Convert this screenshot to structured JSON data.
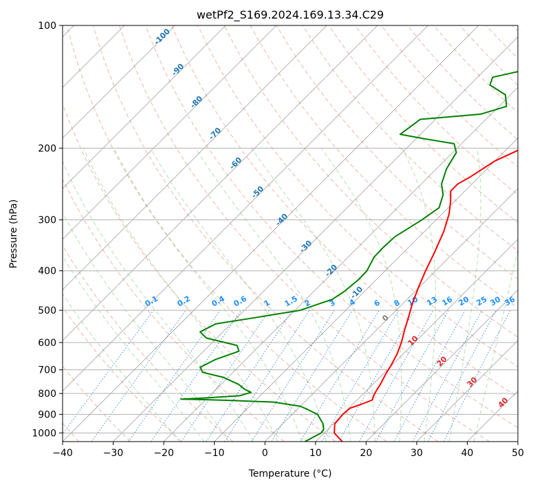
{
  "chart_data": {
    "type": "line",
    "subtype": "skew-t log-p diagram",
    "title": "wetPf2_S169.2024.169.13.34.C29",
    "xlabel": "Temperature (°C)",
    "ylabel": "Pressure (hPa)",
    "xlim": [
      -40,
      50
    ],
    "ylim": [
      1050,
      100
    ],
    "y_scale": "log",
    "x_ticks": [
      -40,
      -30,
      -20,
      -10,
      0,
      10,
      20,
      30,
      40,
      50
    ],
    "y_ticks": [
      100,
      200,
      300,
      400,
      500,
      600,
      700,
      800,
      900,
      1000
    ],
    "grid": true,
    "series": [
      {
        "role": "temperature",
        "color": "#ff0000",
        "points": [
          [
            1050,
            15.3
          ],
          [
            1000,
            12.0
          ],
          [
            950,
            10.3
          ],
          [
            900,
            10.0
          ],
          [
            870,
            10.2
          ],
          [
            850,
            11.7
          ],
          [
            830,
            13.0
          ],
          [
            810,
            12.4
          ],
          [
            790,
            12.0
          ],
          [
            760,
            11.5
          ],
          [
            720,
            10.6
          ],
          [
            680,
            9.8
          ],
          [
            640,
            8.8
          ],
          [
            600,
            7.4
          ],
          [
            560,
            5.6
          ],
          [
            520,
            3.8
          ],
          [
            480,
            1.8
          ],
          [
            440,
            -0.1
          ],
          [
            400,
            -2.0
          ],
          [
            360,
            -3.9
          ],
          [
            320,
            -6.2
          ],
          [
            290,
            -8.6
          ],
          [
            270,
            -10.8
          ],
          [
            255,
            -12.8
          ],
          [
            245,
            -12.8
          ],
          [
            235,
            -11.7
          ],
          [
            215,
            -10.0
          ],
          [
            195,
            -6.0
          ],
          [
            175,
            -3.5
          ],
          [
            155,
            -2.9
          ],
          [
            140,
            -1.4
          ],
          [
            125,
            0.9
          ],
          [
            110,
            4.6
          ],
          [
            100,
            6.5
          ]
        ]
      },
      {
        "role": "dewpoint",
        "color": "#008000",
        "points": [
          [
            1050,
            7.9
          ],
          [
            1020,
            8.8
          ],
          [
            1000,
            9.4
          ],
          [
            980,
            9.2
          ],
          [
            950,
            8.0
          ],
          [
            900,
            5.0
          ],
          [
            875,
            2.0
          ],
          [
            860,
            0.0
          ],
          [
            840,
            -6.0
          ],
          [
            832,
            -15.0
          ],
          [
            828,
            -21.0
          ],
          [
            826,
            -25.0
          ],
          [
            820,
            -20.0
          ],
          [
            810,
            -14.0
          ],
          [
            795,
            -12.5
          ],
          [
            780,
            -14.5
          ],
          [
            760,
            -16.5
          ],
          [
            730,
            -21.0
          ],
          [
            710,
            -26.0
          ],
          [
            690,
            -27.5
          ],
          [
            660,
            -26.0
          ],
          [
            630,
            -23.0
          ],
          [
            610,
            -24.5
          ],
          [
            585,
            -32.0
          ],
          [
            565,
            -34.5
          ],
          [
            540,
            -33.0
          ],
          [
            520,
            -26.0
          ],
          [
            500,
            -19.0
          ],
          [
            470,
            -14.8
          ],
          [
            450,
            -14.0
          ],
          [
            420,
            -13.5
          ],
          [
            400,
            -13.6
          ],
          [
            370,
            -14.9
          ],
          [
            350,
            -15.0
          ],
          [
            330,
            -14.8
          ],
          [
            300,
            -12.8
          ],
          [
            280,
            -11.8
          ],
          [
            260,
            -13.6
          ],
          [
            245,
            -16.0
          ],
          [
            225,
            -18.0
          ],
          [
            205,
            -19.3
          ],
          [
            195,
            -21.5
          ],
          [
            190,
            -28.0
          ],
          [
            185,
            -34.0
          ],
          [
            170,
            -33.0
          ],
          [
            165,
            -22.0
          ],
          [
            158,
            -18.5
          ],
          [
            148,
            -21.0
          ],
          [
            140,
            -26.0
          ],
          [
            134,
            -27.0
          ],
          [
            125,
            -18.5
          ],
          [
            115,
            -13.0
          ],
          [
            105,
            -9.5
          ],
          [
            100,
            -7.5
          ]
        ]
      }
    ],
    "dry_adiabat_labels": [
      "-100",
      "-90",
      "-80",
      "-70",
      "-60",
      "-50",
      "-40",
      "-30",
      "-20",
      "-10"
    ],
    "mixing_ratio_labels": [
      "0.1",
      "0.2",
      "0.4",
      "0.6",
      "1",
      "1.5",
      "2",
      "3",
      "4",
      "6",
      "8",
      "10",
      "13",
      "16",
      "20",
      "25",
      "30",
      "36"
    ],
    "moist_adiabat_labels": [
      "0",
      "10",
      "20",
      "30",
      "40"
    ],
    "colors": {
      "dry_adiabat": "#d55e3f",
      "moist_adiabat": "#2ca02c",
      "mixing_ratio": "#1f77d4",
      "isotherm": "#808080",
      "dry_adiabat_label": "#1f77b4",
      "mixing_ratio_label": "#1e90ff",
      "moist_label_cold": "#808080",
      "moist_label_warm": "#d62728"
    }
  }
}
